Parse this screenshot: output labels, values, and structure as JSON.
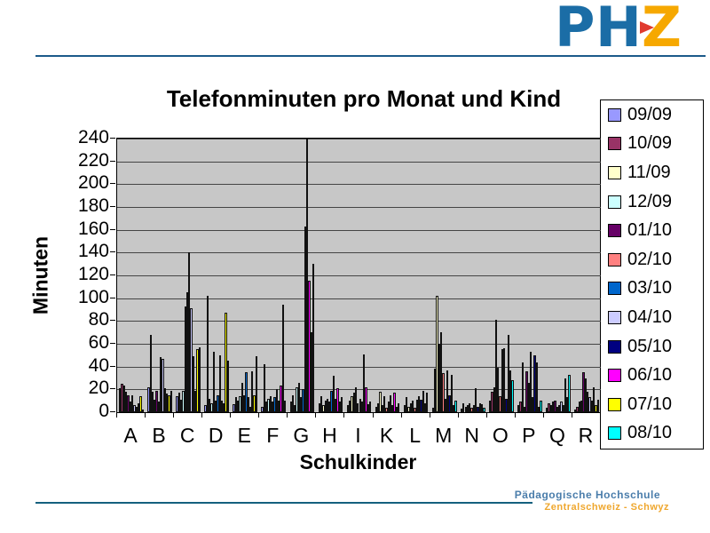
{
  "header": {
    "logo": {
      "letters": [
        "P",
        "H",
        "Z"
      ],
      "blue": "#1b6da6",
      "orange": "#f6a800",
      "red": "#e03a2f"
    }
  },
  "chart_data": {
    "type": "bar",
    "title": "Telefonminuten pro Monat und Kind",
    "xlabel": "Schulkinder",
    "ylabel": "Minuten",
    "ylim": [
      0,
      240
    ],
    "ytick_step": 20,
    "grid": true,
    "legend_position": "right",
    "plot_background": "#c7c7c7",
    "categories": [
      "A",
      "B",
      "C",
      "D",
      "E",
      "F",
      "G",
      "H",
      "I",
      "K",
      "L",
      "M",
      "N",
      "O",
      "P",
      "Q",
      "R"
    ],
    "series": [
      {
        "name": "09/09",
        "color": "#9999FF",
        "values": [
          21,
          22,
          14,
          6,
          7,
          5,
          9,
          8,
          6,
          5,
          6,
          4,
          3,
          10,
          6,
          4,
          2
        ]
      },
      {
        "name": "10/09",
        "color": "#993366",
        "values": [
          25,
          68,
          17,
          102,
          13,
          42,
          15,
          14,
          10,
          8,
          13,
          38,
          8,
          18,
          9,
          8,
          5
        ]
      },
      {
        "name": "11/09",
        "color": "#FFFFCC",
        "values": [
          23,
          18,
          11,
          12,
          10,
          9,
          6,
          6,
          14,
          18,
          5,
          102,
          5,
          22,
          44,
          6,
          9
        ]
      },
      {
        "name": "12/09",
        "color": "#CCFFFF",
        "values": [
          18,
          11,
          19,
          8,
          14,
          12,
          22,
          10,
          17,
          6,
          8,
          60,
          6,
          81,
          5,
          9,
          10
        ]
      },
      {
        "name": "01/10",
        "color": "#660066",
        "values": [
          15,
          19,
          93,
          53,
          26,
          14,
          26,
          12,
          22,
          14,
          10,
          70,
          8,
          39,
          36,
          10,
          35
        ]
      },
      {
        "name": "02/10",
        "color": "#FF8080",
        "values": [
          9,
          9,
          105,
          10,
          15,
          9,
          13,
          9,
          8,
          4,
          4,
          34,
          4,
          14,
          26,
          5,
          30
        ]
      },
      {
        "name": "03/10",
        "color": "#0066CC",
        "values": [
          15,
          48,
          140,
          15,
          35,
          13,
          20,
          19,
          12,
          9,
          11,
          12,
          6,
          55,
          53,
          6,
          18
        ]
      },
      {
        "name": "04/10",
        "color": "#CCCCFF",
        "values": [
          6,
          47,
          91,
          50,
          13,
          20,
          163,
          32,
          9,
          15,
          14,
          37,
          21,
          56,
          13,
          9,
          13
        ]
      },
      {
        "name": "05/10",
        "color": "#000080",
        "values": [
          5,
          21,
          49,
          10,
          5,
          10,
          242,
          12,
          51,
          6,
          11,
          15,
          5,
          12,
          50,
          6,
          10
        ]
      },
      {
        "name": "06/10",
        "color": "#FF00FF",
        "values": [
          8,
          16,
          19,
          8,
          36,
          23,
          115,
          21,
          22,
          17,
          19,
          33,
          8,
          68,
          44,
          30,
          22
        ]
      },
      {
        "name": "07/10",
        "color": "#FFFF00",
        "values": [
          14,
          15,
          55,
          87,
          15,
          94,
          70,
          9,
          7,
          5,
          8,
          6,
          7,
          37,
          5,
          13,
          6
        ]
      },
      {
        "name": "08/10",
        "color": "#00FFFF",
        "values": [
          2,
          19,
          57,
          45,
          49,
          10,
          130,
          13,
          9,
          8,
          17,
          10,
          4,
          28,
          10,
          33,
          11
        ]
      }
    ]
  },
  "footer": {
    "line1": "Pädagogische Hochschule",
    "line2": "Zentralschweiz - Schwyz",
    "blue": "#4a7dab",
    "orange": "#efa72e",
    "rule_color": "#14607e"
  }
}
